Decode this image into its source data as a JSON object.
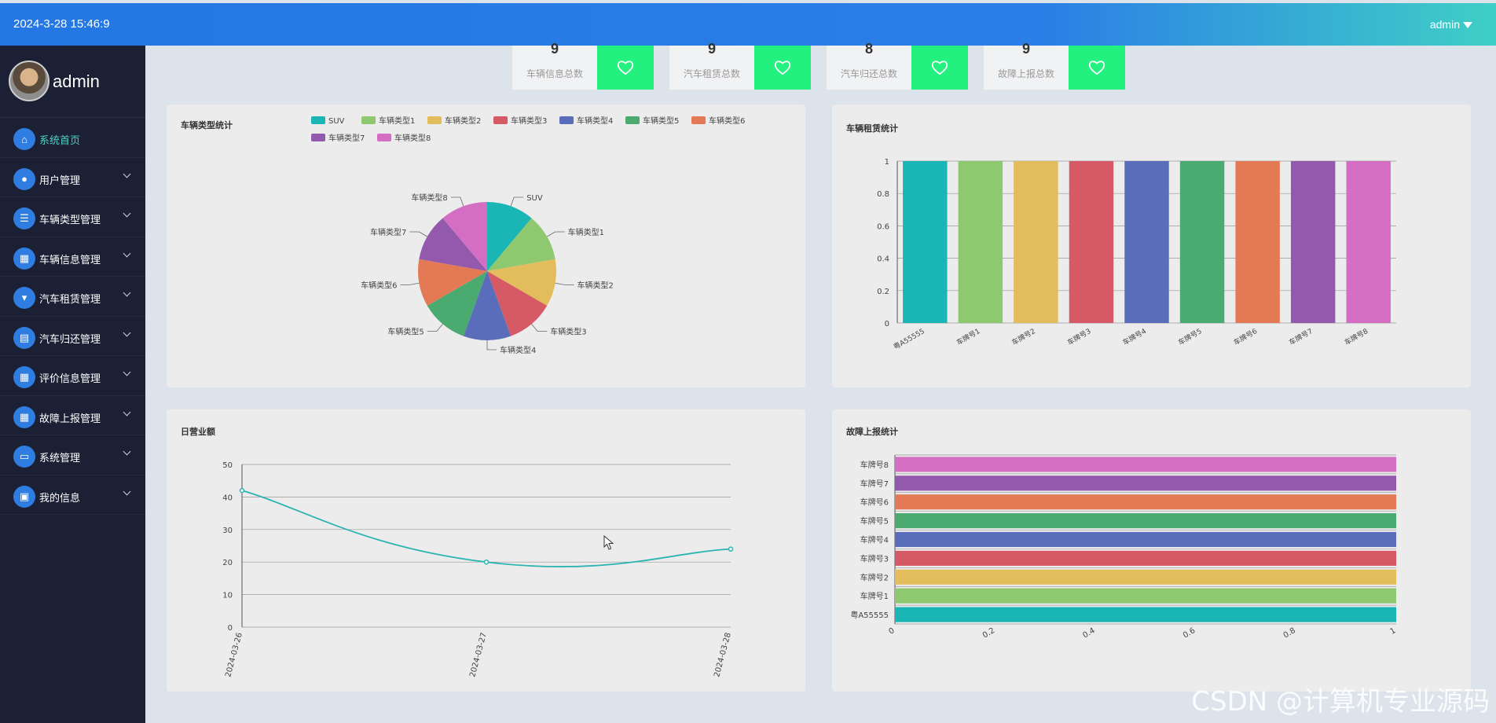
{
  "header": {
    "datetime": "2024-3-28 15:46:9",
    "user": "admin"
  },
  "sidebar": {
    "username": "admin",
    "items": [
      {
        "label": "系统首页",
        "icon": "home-icon",
        "active": true
      },
      {
        "label": "用户管理",
        "icon": "user-icon"
      },
      {
        "label": "车辆类型管理",
        "icon": "list-icon"
      },
      {
        "label": "车辆信息管理",
        "icon": "grid-icon"
      },
      {
        "label": "汽车租赁管理",
        "icon": "rental-icon"
      },
      {
        "label": "汽车归还管理",
        "icon": "clipboard-icon"
      },
      {
        "label": "评价信息管理",
        "icon": "grid-icon"
      },
      {
        "label": "故障上报管理",
        "icon": "grid-icon"
      },
      {
        "label": "系统管理",
        "icon": "monitor-icon"
      },
      {
        "label": "我的信息",
        "icon": "card-icon"
      }
    ]
  },
  "stats": [
    {
      "value": "9",
      "label": "车辆信息总数"
    },
    {
      "value": "9",
      "label": "汽车租赁总数"
    },
    {
      "value": "8",
      "label": "汽车归还总数"
    },
    {
      "value": "9",
      "label": "故障上报总数"
    }
  ],
  "colors": [
    "#1ab5b5",
    "#8fc96f",
    "#e3bd5c",
    "#d65a66",
    "#5a6dbb",
    "#4aaa70",
    "#e47a55",
    "#9359ad",
    "#d46ec2"
  ],
  "watermark": "CSDN @计算机专业源码",
  "chart_data": [
    {
      "type": "pie",
      "title": "车辆类型统计",
      "categories": [
        "SUV",
        "车辆类型1",
        "车辆类型2",
        "车辆类型3",
        "车辆类型4",
        "车辆类型5",
        "车辆类型6",
        "车辆类型7",
        "车辆类型8"
      ],
      "values": [
        1,
        1,
        1,
        1,
        1,
        1,
        1,
        1,
        1
      ],
      "legend": "top-right"
    },
    {
      "type": "bar",
      "title": "车辆租赁统计",
      "categories": [
        "粤A55555",
        "车牌号1",
        "车牌号2",
        "车牌号3",
        "车牌号4",
        "车牌号5",
        "车牌号6",
        "车牌号7",
        "车牌号8"
      ],
      "values": [
        1,
        1,
        1,
        1,
        1,
        1,
        1,
        1,
        1
      ],
      "ylim": [
        0,
        1
      ],
      "yticks": [
        "0",
        "0.2",
        "0.4",
        "0.6",
        "0.8",
        "1"
      ]
    },
    {
      "type": "line",
      "title": "日营业额",
      "categories": [
        "2024-03-26",
        "2024-03-27",
        "2024-03-28"
      ],
      "values": [
        42,
        20,
        24
      ],
      "ylim": [
        0,
        50
      ],
      "yticks": [
        "0",
        "10",
        "20",
        "30",
        "40",
        "50"
      ]
    },
    {
      "type": "bar",
      "orientation": "horizontal",
      "title": "故障上报统计",
      "categories": [
        "粤A55555",
        "车牌号1",
        "车牌号2",
        "车牌号3",
        "车牌号4",
        "车牌号5",
        "车牌号6",
        "车牌号7",
        "车牌号8"
      ],
      "values": [
        1,
        1,
        1,
        1,
        1,
        1,
        1,
        1,
        1
      ],
      "xlim": [
        0,
        1
      ],
      "xticks": [
        "0",
        "0.2",
        "0.4",
        "0.6",
        "0.8",
        "1"
      ]
    }
  ]
}
